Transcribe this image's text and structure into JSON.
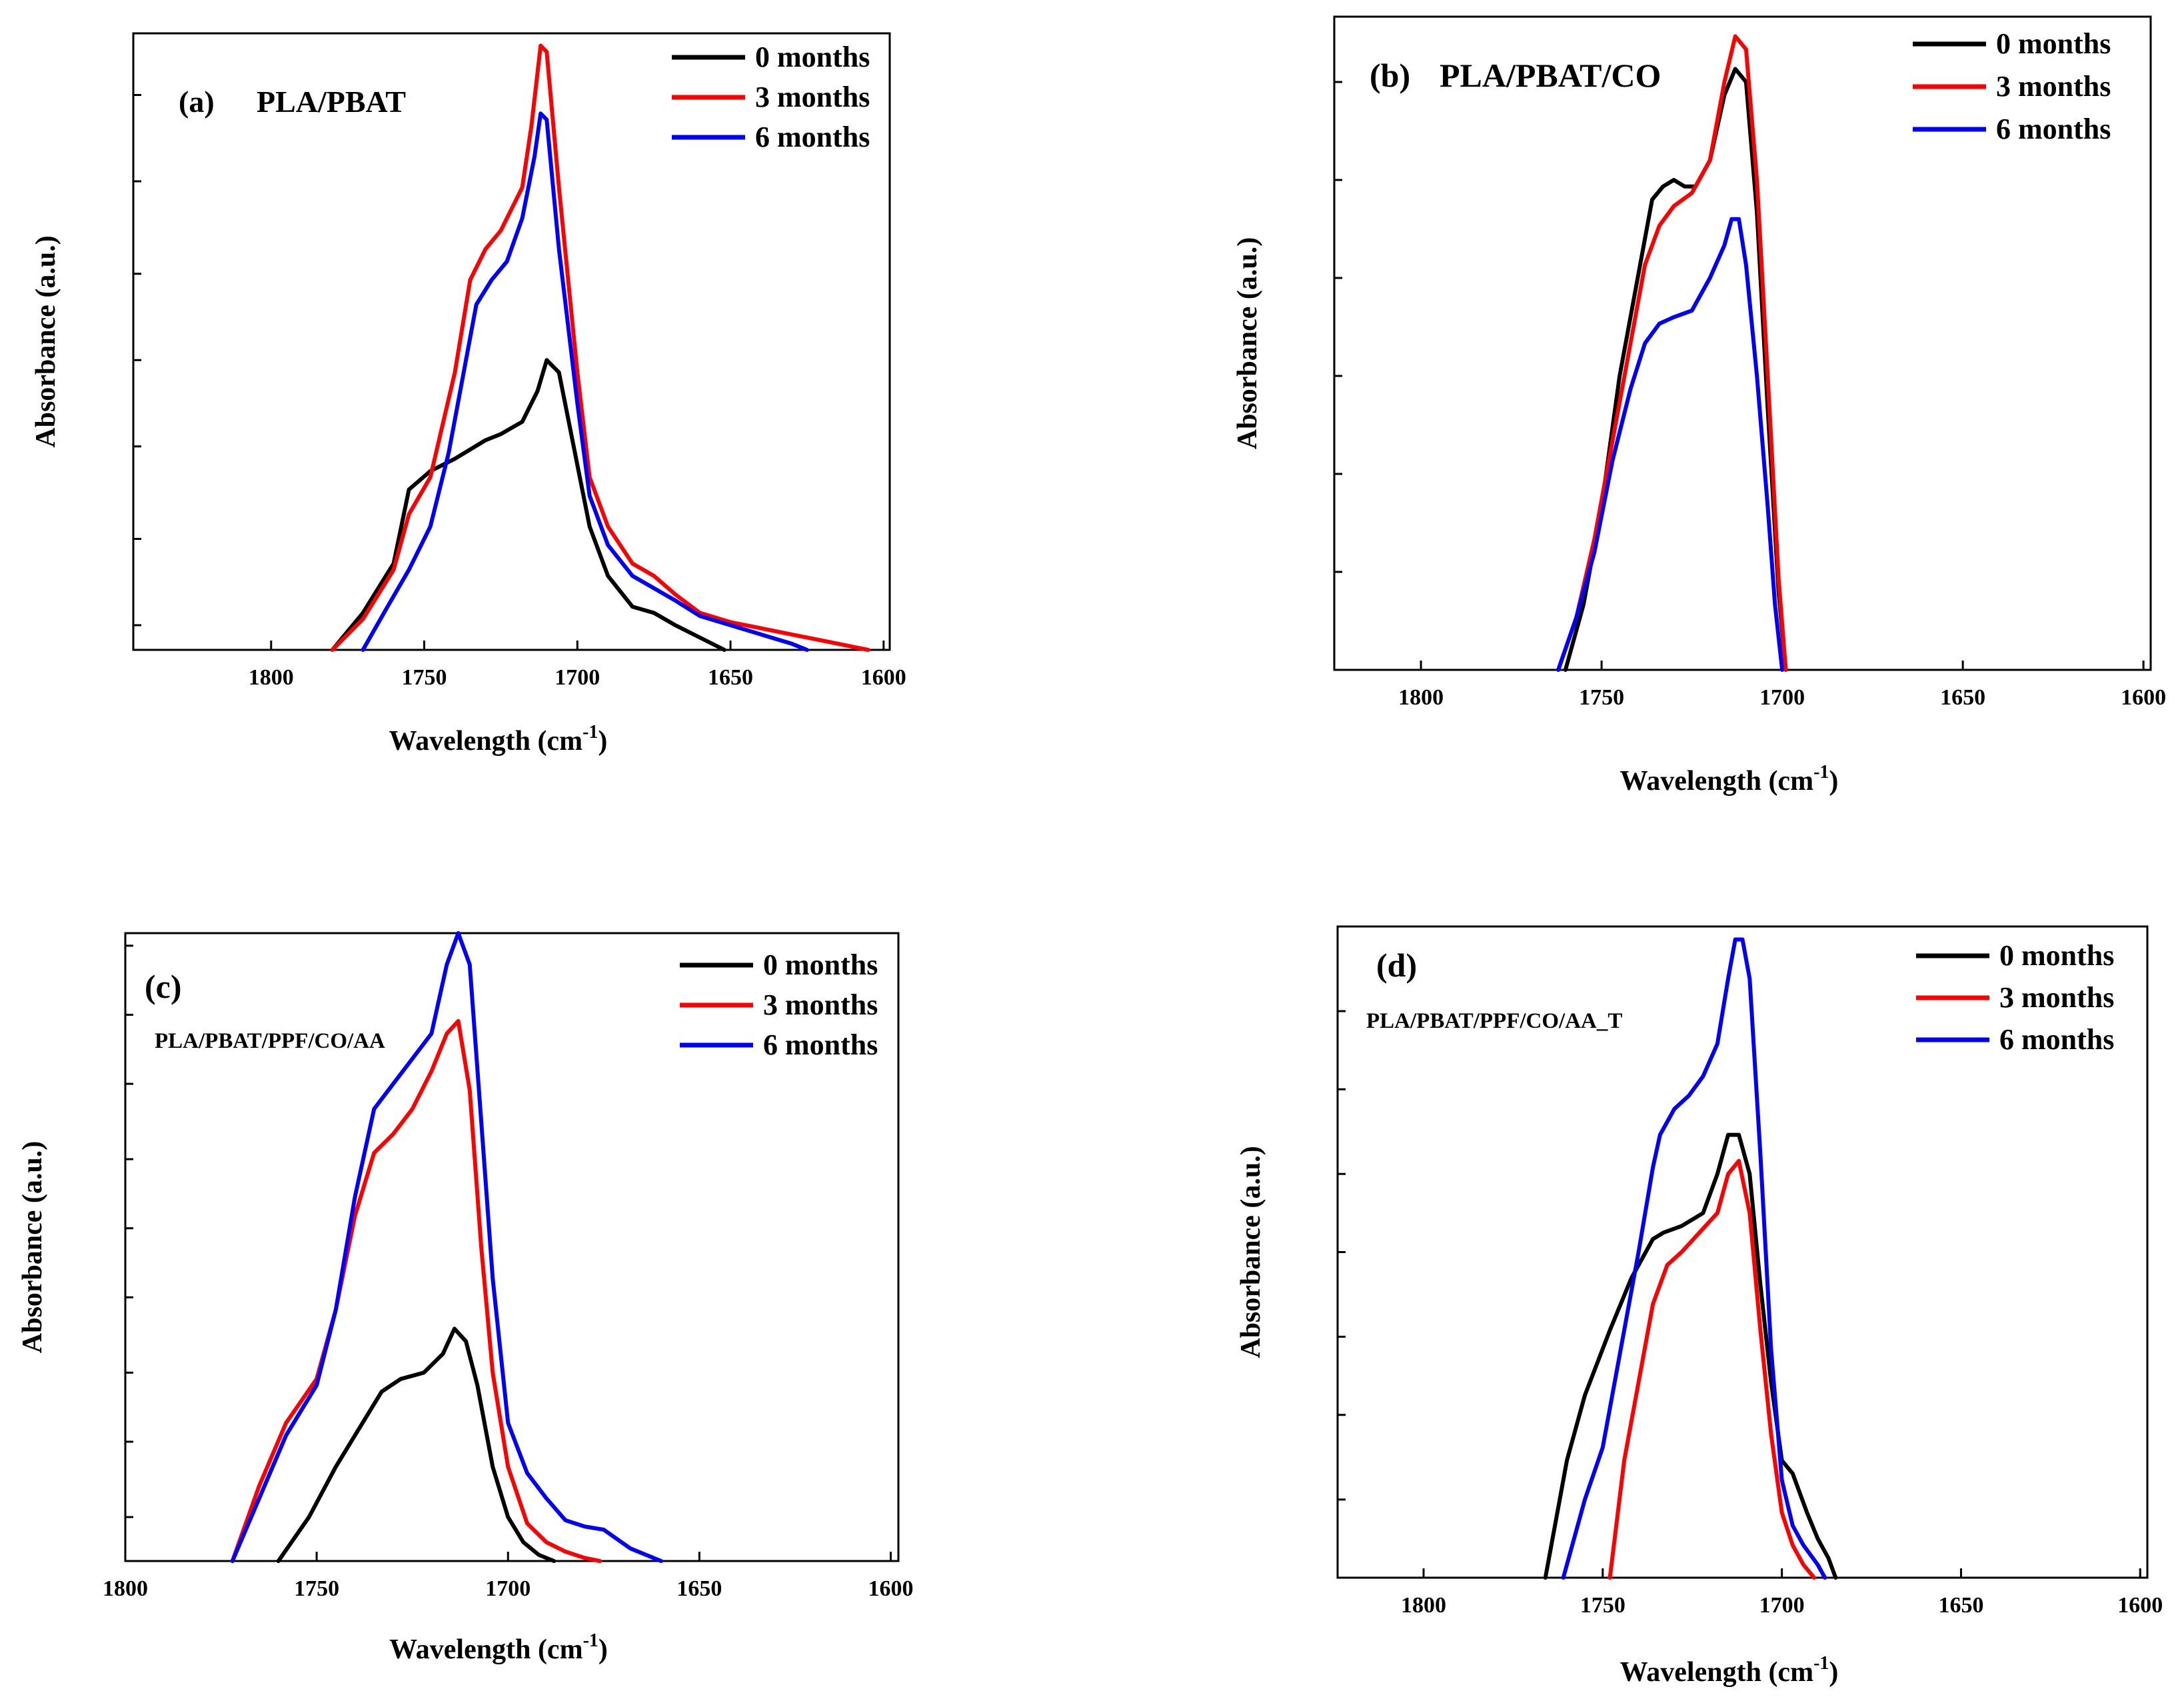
{
  "figure": {
    "panels": [
      {
        "id": "a",
        "label": "(a)",
        "sample": "PLA/PBAT",
        "chart_data": {
          "type": "line",
          "title": "(a) PLA/PBAT",
          "xlabel": "Wavelength (cm",
          "xlabel_sup": "-1",
          "xlabel_end": ")",
          "ylabel": "Absorbance (a.u.)",
          "xlim": [
            1845,
            1598
          ],
          "ylim": [
            0,
            1.0
          ],
          "xticks": [
            "1800",
            "1750",
            "1700",
            "1650",
            "1600"
          ],
          "xtick_values": [
            1800,
            1750,
            1700,
            1650,
            1600
          ],
          "y_minor_ticks": [
            0.04,
            0.18,
            0.33,
            0.47,
            0.61,
            0.76,
            0.9
          ],
          "legend": [
            "0 months",
            "3 months",
            "6 months"
          ],
          "legend_position": "top-right",
          "series": [
            {
              "name": "0 months",
              "color": "#000000",
              "x": [
                1780,
                1770,
                1760,
                1755,
                1748,
                1740,
                1730,
                1725,
                1718,
                1713,
                1710,
                1706,
                1700,
                1696,
                1690,
                1682,
                1675,
                1668,
                1660,
                1652
              ],
              "y": [
                0.0,
                0.06,
                0.14,
                0.26,
                0.29,
                0.31,
                0.34,
                0.35,
                0.37,
                0.42,
                0.47,
                0.45,
                0.3,
                0.2,
                0.12,
                0.07,
                0.06,
                0.04,
                0.02,
                0.0
              ]
            },
            {
              "name": "3 months",
              "color": "#ff0000",
              "x": [
                1780,
                1770,
                1760,
                1755,
                1748,
                1740,
                1735,
                1730,
                1725,
                1718,
                1715,
                1712,
                1710,
                1706,
                1700,
                1696,
                1690,
                1682,
                1675,
                1668,
                1660,
                1650,
                1640,
                1630,
                1620,
                1610,
                1605
              ],
              "y": [
                0.0,
                0.05,
                0.13,
                0.22,
                0.28,
                0.45,
                0.6,
                0.65,
                0.68,
                0.75,
                0.85,
                0.98,
                0.97,
                0.75,
                0.45,
                0.28,
                0.2,
                0.14,
                0.12,
                0.09,
                0.06,
                0.045,
                0.035,
                0.025,
                0.015,
                0.005,
                0.0
              ]
            },
            {
              "name": "6 months",
              "color": "#0000ff",
              "x": [
                1770,
                1762,
                1755,
                1748,
                1742,
                1736,
                1733,
                1728,
                1723,
                1718,
                1714,
                1712,
                1710,
                1706,
                1700,
                1696,
                1690,
                1682,
                1675,
                1668,
                1660,
                1650,
                1640,
                1630,
                1625
              ],
              "y": [
                0.0,
                0.07,
                0.13,
                0.2,
                0.32,
                0.48,
                0.56,
                0.6,
                0.63,
                0.7,
                0.8,
                0.87,
                0.86,
                0.65,
                0.4,
                0.25,
                0.17,
                0.12,
                0.1,
                0.08,
                0.055,
                0.04,
                0.025,
                0.01,
                0.0
              ]
            }
          ]
        }
      },
      {
        "id": "b",
        "label": "(b)",
        "sample": "PLA/PBAT/CO",
        "chart_data": {
          "type": "line",
          "title": "(b) PLA/PBAT/CO",
          "xlabel": "Wavelength (cm",
          "xlabel_sup": "-1",
          "xlabel_end": ")",
          "ylabel": "Absorbance (a.u.)",
          "xlim": [
            1824,
            1598
          ],
          "ylim": [
            0,
            1.0
          ],
          "xticks": [
            "1800",
            "1750",
            "1700",
            "1650",
            "1600"
          ],
          "xtick_values": [
            1800,
            1750,
            1700,
            1650,
            1600
          ],
          "y_minor_ticks": [
            0.0,
            0.15,
            0.3,
            0.45,
            0.6,
            0.75,
            0.9
          ],
          "legend": [
            "0 months",
            "3 months",
            "6 months"
          ],
          "legend_position": "top-right",
          "series": [
            {
              "name": "0 months",
              "color": "#000000",
              "x": [
                1760,
                1755,
                1750,
                1745,
                1740,
                1736,
                1733,
                1730,
                1727,
                1724,
                1720,
                1716,
                1713,
                1710,
                1707,
                1704,
                1701,
                1699
              ],
              "y": [
                0.0,
                0.1,
                0.25,
                0.45,
                0.6,
                0.72,
                0.74,
                0.75,
                0.74,
                0.74,
                0.78,
                0.88,
                0.92,
                0.9,
                0.7,
                0.4,
                0.12,
                0.0
              ]
            },
            {
              "name": "3 months",
              "color": "#ff0000",
              "x": [
                1762,
                1757,
                1752,
                1747,
                1742,
                1738,
                1734,
                1730,
                1725,
                1720,
                1716,
                1713,
                1710,
                1707,
                1704,
                1701,
                1699
              ],
              "y": [
                0.0,
                0.08,
                0.2,
                0.35,
                0.5,
                0.62,
                0.68,
                0.71,
                0.73,
                0.78,
                0.9,
                0.97,
                0.95,
                0.75,
                0.45,
                0.14,
                0.0
              ]
            },
            {
              "name": "6 months",
              "color": "#0000ff",
              "x": [
                1762,
                1757,
                1752,
                1747,
                1742,
                1738,
                1734,
                1730,
                1725,
                1720,
                1716,
                1714,
                1712,
                1710,
                1707,
                1704,
                1702,
                1700
              ],
              "y": [
                0.0,
                0.08,
                0.18,
                0.32,
                0.43,
                0.5,
                0.53,
                0.54,
                0.55,
                0.6,
                0.65,
                0.69,
                0.69,
                0.62,
                0.45,
                0.25,
                0.1,
                0.0
              ]
            }
          ]
        }
      },
      {
        "id": "c",
        "label": "(c)",
        "sample": "PLA/PBAT/PPF/CO/AA",
        "chart_data": {
          "type": "line",
          "title": "(c) PLA/PBAT/PPF/CO/AA",
          "xlabel": "Wavelength (cm",
          "xlabel_sup": "-1",
          "xlabel_end": ")",
          "ylabel": "Absorbance (a.u.)",
          "xlim": [
            1800,
            1598
          ],
          "ylim": [
            0,
            1.0
          ],
          "xticks": [
            "1800",
            "1750",
            "1700",
            "1650",
            "1600"
          ],
          "xtick_values": [
            1800,
            1750,
            1700,
            1650,
            1600
          ],
          "y_minor_ticks": [
            0.07,
            0.19,
            0.3,
            0.42,
            0.53,
            0.64,
            0.76,
            0.87,
            0.98
          ],
          "legend": [
            "0 months",
            "3 months",
            "6 months"
          ],
          "legend_position": "top-right",
          "series": [
            {
              "name": "0 months",
              "color": "#000000",
              "x": [
                1760,
                1752,
                1745,
                1738,
                1733,
                1728,
                1722,
                1717,
                1714,
                1711,
                1708,
                1704,
                1700,
                1696,
                1692,
                1688
              ],
              "y": [
                0.0,
                0.07,
                0.15,
                0.22,
                0.27,
                0.29,
                0.3,
                0.33,
                0.37,
                0.35,
                0.28,
                0.15,
                0.07,
                0.03,
                0.01,
                0.0
              ]
            },
            {
              "name": "3 months",
              "color": "#ff0000",
              "x": [
                1772,
                1765,
                1758,
                1750,
                1745,
                1740,
                1735,
                1730,
                1725,
                1720,
                1716,
                1713,
                1710,
                1707,
                1704,
                1700,
                1695,
                1690,
                1685,
                1680,
                1676
              ],
              "y": [
                0.0,
                0.12,
                0.22,
                0.29,
                0.4,
                0.55,
                0.65,
                0.68,
                0.72,
                0.78,
                0.84,
                0.86,
                0.75,
                0.5,
                0.3,
                0.15,
                0.06,
                0.03,
                0.015,
                0.005,
                0.0
              ]
            },
            {
              "name": "6 months",
              "color": "#0000ff",
              "x": [
                1772,
                1765,
                1758,
                1750,
                1745,
                1740,
                1735,
                1730,
                1725,
                1720,
                1716,
                1713,
                1710,
                1707,
                1704,
                1700,
                1695,
                1690,
                1685,
                1680,
                1675,
                1668,
                1660
              ],
              "y": [
                0.0,
                0.1,
                0.2,
                0.28,
                0.4,
                0.58,
                0.72,
                0.76,
                0.8,
                0.84,
                0.95,
                1.0,
                0.95,
                0.7,
                0.45,
                0.22,
                0.14,
                0.1,
                0.065,
                0.055,
                0.05,
                0.02,
                0.0
              ]
            }
          ]
        }
      },
      {
        "id": "d",
        "label": "(d)",
        "sample": "PLA/PBAT/PPF/CO/AA_T",
        "chart_data": {
          "type": "line",
          "title": "(d) PLA/PBAT/PPF/CO/AA_T",
          "xlabel": "Wavelength (cm",
          "xlabel_sup": "-1",
          "xlabel_end": ")",
          "ylabel": "Absorbance (a.u.)",
          "xlim": [
            1824,
            1598
          ],
          "ylim": [
            0,
            1.0
          ],
          "xticks": [
            "1800",
            "1750",
            "1700",
            "1650",
            "1600"
          ],
          "xtick_values": [
            1800,
            1750,
            1700,
            1650,
            1600
          ],
          "y_minor_ticks": [
            0.0,
            0.12,
            0.25,
            0.37,
            0.5,
            0.62,
            0.75,
            0.87,
            1.0
          ],
          "legend": [
            "0 months",
            "3 months",
            "6 months"
          ],
          "legend_position": "top-right",
          "series": [
            {
              "name": "0 months",
              "color": "#000000",
              "x": [
                1766,
                1760,
                1755,
                1748,
                1742,
                1736,
                1733,
                1728,
                1722,
                1718,
                1715,
                1712,
                1709,
                1706,
                1703,
                1700,
                1697,
                1693,
                1690,
                1687,
                1685
              ],
              "y": [
                0.0,
                0.18,
                0.28,
                0.38,
                0.46,
                0.52,
                0.53,
                0.54,
                0.56,
                0.62,
                0.68,
                0.68,
                0.62,
                0.45,
                0.3,
                0.18,
                0.16,
                0.1,
                0.06,
                0.03,
                0.0
              ]
            },
            {
              "name": "3 months",
              "color": "#ff0000",
              "x": [
                1748,
                1744,
                1740,
                1736,
                1732,
                1728,
                1723,
                1718,
                1715,
                1712,
                1709,
                1706,
                1703,
                1700,
                1697,
                1694,
                1691
              ],
              "y": [
                0.0,
                0.18,
                0.3,
                0.42,
                0.48,
                0.5,
                0.53,
                0.56,
                0.62,
                0.64,
                0.56,
                0.38,
                0.22,
                0.1,
                0.05,
                0.02,
                0.0
              ]
            },
            {
              "name": "6 months",
              "color": "#0000ff",
              "x": [
                1761,
                1755,
                1750,
                1745,
                1740,
                1736,
                1734,
                1730,
                1726,
                1722,
                1718,
                1715,
                1713,
                1711,
                1709,
                1706,
                1703,
                1700,
                1697,
                1694,
                1690,
                1688
              ],
              "y": [
                0.0,
                0.12,
                0.2,
                0.35,
                0.5,
                0.63,
                0.68,
                0.72,
                0.74,
                0.77,
                0.82,
                0.92,
                0.98,
                0.98,
                0.92,
                0.65,
                0.35,
                0.15,
                0.08,
                0.05,
                0.02,
                0.0
              ]
            }
          ]
        }
      }
    ]
  }
}
